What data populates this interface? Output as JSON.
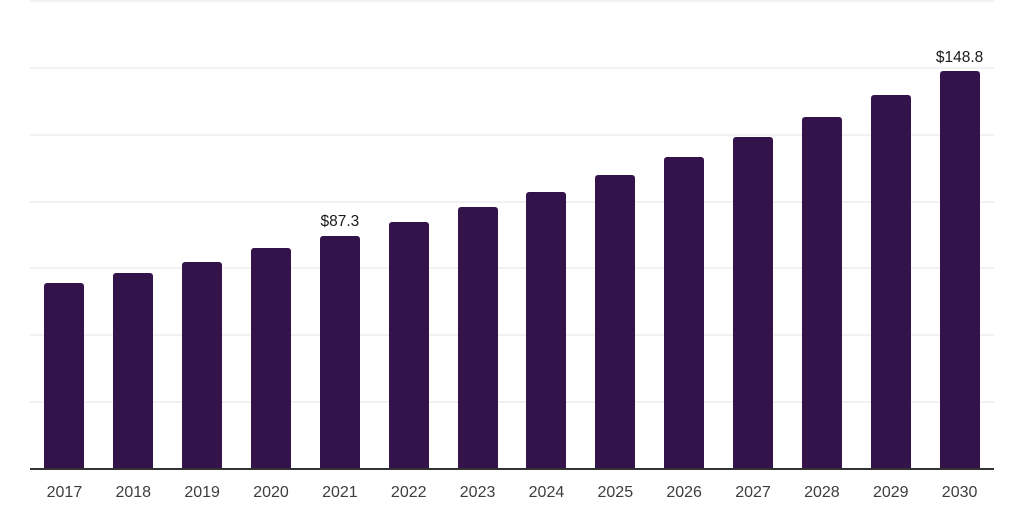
{
  "chart_data": {
    "type": "bar",
    "title": "",
    "xlabel": "",
    "ylabel": "",
    "categories": [
      "2017",
      "2018",
      "2019",
      "2020",
      "2021",
      "2022",
      "2023",
      "2024",
      "2025",
      "2026",
      "2027",
      "2028",
      "2029",
      "2030"
    ],
    "values": [
      69.7,
      73.4,
      77.4,
      82.6,
      87.3,
      92.5,
      97.9,
      103.5,
      109.8,
      116.7,
      124.0,
      131.6,
      140.0,
      148.8
    ],
    "data_labels": [
      "",
      "",
      "",
      "",
      "$87.3",
      "",
      "",
      "",
      "",
      "",
      "",
      "",
      "",
      "$148.8"
    ],
    "ylim": [
      0,
      175
    ],
    "gridline_step": 25,
    "grid": true,
    "legend_position": "none",
    "y_tick_labels_visible": false
  },
  "colors": {
    "bar": "#331349",
    "gridline": "#f2f2f2",
    "axis_line": "#333333",
    "x_tick_label": "#3d3d3d",
    "data_label": "#1a1a1a",
    "background": "#ffffff"
  }
}
